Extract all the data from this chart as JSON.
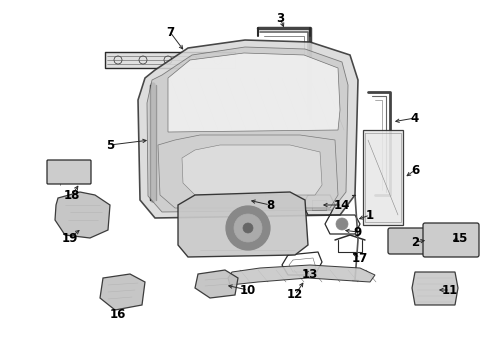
{
  "bg_color": "#ffffff",
  "line_color": "#2a2a2a",
  "label_color": "#000000",
  "fig_width": 4.9,
  "fig_height": 3.6,
  "dpi": 100,
  "label_fontsize": 8.5,
  "lw": 0.9
}
